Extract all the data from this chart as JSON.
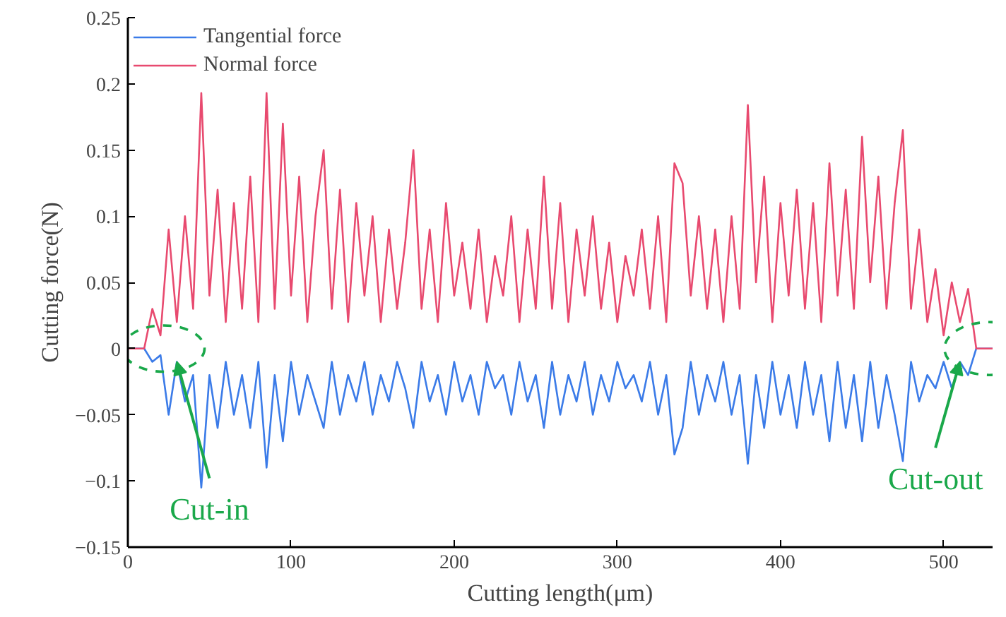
{
  "chart_data": {
    "type": "line",
    "xlabel": "Cutting length(μm)",
    "ylabel": "Cutting force(N)",
    "xlim": [
      0,
      530
    ],
    "xticks": [
      0,
      100,
      200,
      300,
      400,
      500
    ],
    "ylim": [
      -0.15,
      0.25
    ],
    "yticks": [
      -0.15,
      -0.1,
      -0.05,
      0,
      0.05,
      0.1,
      0.15,
      0.2,
      0.25
    ],
    "grid": false,
    "legend": "top left",
    "marker": "none",
    "line_style": "solid",
    "x": [
      0,
      5,
      10,
      15,
      20,
      25,
      30,
      35,
      40,
      45,
      50,
      55,
      60,
      65,
      70,
      75,
      80,
      85,
      90,
      95,
      100,
      105,
      110,
      115,
      120,
      125,
      130,
      135,
      140,
      145,
      150,
      155,
      160,
      165,
      170,
      175,
      180,
      185,
      190,
      195,
      200,
      205,
      210,
      215,
      220,
      225,
      230,
      235,
      240,
      245,
      250,
      255,
      260,
      265,
      270,
      275,
      280,
      285,
      290,
      295,
      300,
      305,
      310,
      315,
      320,
      325,
      330,
      335,
      340,
      345,
      350,
      355,
      360,
      365,
      370,
      375,
      380,
      385,
      390,
      395,
      400,
      405,
      410,
      415,
      420,
      425,
      430,
      435,
      440,
      445,
      450,
      455,
      460,
      465,
      470,
      475,
      480,
      485,
      490,
      495,
      500,
      505,
      510,
      515,
      520,
      525,
      530
    ],
    "series": [
      {
        "name": "Tangential force",
        "color": "#3b7be8",
        "values": [
          0,
          0,
          0,
          -0.01,
          -0.005,
          -0.05,
          -0.01,
          -0.04,
          -0.02,
          -0.105,
          -0.02,
          -0.06,
          -0.01,
          -0.05,
          -0.02,
          -0.06,
          -0.01,
          -0.09,
          -0.02,
          -0.07,
          -0.01,
          -0.05,
          -0.02,
          -0.04,
          -0.06,
          -0.01,
          -0.05,
          -0.02,
          -0.04,
          -0.01,
          -0.05,
          -0.02,
          -0.04,
          -0.01,
          -0.03,
          -0.06,
          -0.01,
          -0.04,
          -0.02,
          -0.05,
          -0.01,
          -0.04,
          -0.02,
          -0.05,
          -0.01,
          -0.03,
          -0.02,
          -0.05,
          -0.01,
          -0.04,
          -0.02,
          -0.06,
          -0.01,
          -0.05,
          -0.02,
          -0.04,
          -0.01,
          -0.05,
          -0.02,
          -0.04,
          -0.01,
          -0.03,
          -0.02,
          -0.04,
          -0.01,
          -0.05,
          -0.02,
          -0.08,
          -0.06,
          -0.01,
          -0.05,
          -0.02,
          -0.04,
          -0.01,
          -0.05,
          -0.02,
          -0.087,
          -0.02,
          -0.06,
          -0.01,
          -0.05,
          -0.02,
          -0.06,
          -0.01,
          -0.05,
          -0.02,
          -0.07,
          -0.01,
          -0.06,
          -0.02,
          -0.07,
          -0.01,
          -0.06,
          -0.02,
          -0.05,
          -0.085,
          -0.01,
          -0.04,
          -0.02,
          -0.03,
          -0.01,
          -0.03,
          -0.01,
          -0.02,
          0,
          0,
          0
        ]
      },
      {
        "name": "Normal force",
        "color": "#e84a6f",
        "values": [
          0,
          0,
          0,
          0.03,
          0.01,
          0.09,
          0.02,
          0.1,
          0.03,
          0.193,
          0.04,
          0.12,
          0.02,
          0.11,
          0.03,
          0.13,
          0.02,
          0.193,
          0.03,
          0.17,
          0.04,
          0.13,
          0.02,
          0.1,
          0.15,
          0.03,
          0.12,
          0.02,
          0.11,
          0.04,
          0.1,
          0.02,
          0.09,
          0.03,
          0.08,
          0.15,
          0.03,
          0.09,
          0.02,
          0.11,
          0.04,
          0.08,
          0.03,
          0.09,
          0.02,
          0.07,
          0.04,
          0.1,
          0.02,
          0.09,
          0.03,
          0.13,
          0.03,
          0.11,
          0.02,
          0.09,
          0.04,
          0.1,
          0.03,
          0.08,
          0.02,
          0.07,
          0.04,
          0.09,
          0.03,
          0.1,
          0.02,
          0.14,
          0.125,
          0.04,
          0.1,
          0.03,
          0.09,
          0.02,
          0.1,
          0.03,
          0.184,
          0.05,
          0.13,
          0.02,
          0.11,
          0.04,
          0.12,
          0.03,
          0.11,
          0.02,
          0.14,
          0.04,
          0.12,
          0.03,
          0.16,
          0.05,
          0.13,
          0.03,
          0.11,
          0.165,
          0.03,
          0.09,
          0.02,
          0.06,
          0.01,
          0.05,
          0.02,
          0.045,
          0,
          0,
          0
        ]
      }
    ],
    "annotations": [
      {
        "text": "Cut-in",
        "x": 30,
        "y": -0.01
      },
      {
        "text": "Cut-out",
        "x": 510,
        "y": -0.01
      }
    ]
  }
}
